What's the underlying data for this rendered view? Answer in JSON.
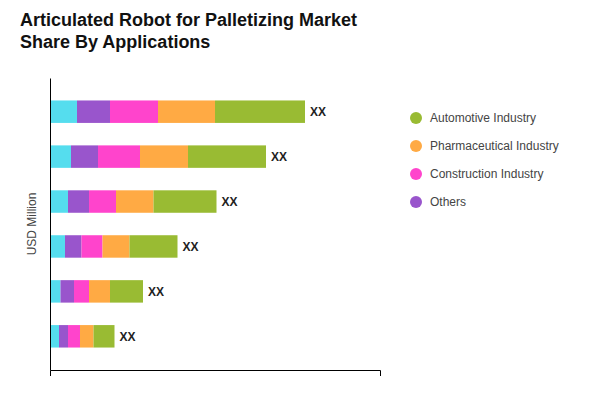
{
  "chart_data": {
    "type": "bar",
    "orientation": "horizontal",
    "stacked": true,
    "title": "Articulated Robot for Palletizing Market\nShare By Applications",
    "ylabel": "USD Million",
    "categories": [
      null,
      null,
      null,
      null,
      null,
      null
    ],
    "series": [
      {
        "color": "#55DDEE",
        "values": [
          1.8,
          1.4,
          1.2,
          1.0,
          0.7,
          0.6
        ]
      },
      {
        "name": "Others",
        "color": "#9955CC",
        "values": [
          2.2,
          1.8,
          1.4,
          1.1,
          0.9,
          0.6
        ]
      },
      {
        "name": "Construction Industry",
        "color": "#FF44CC",
        "values": [
          3.2,
          2.8,
          1.8,
          1.4,
          1.0,
          0.8
        ]
      },
      {
        "name": "Pharmaceutical Industry",
        "color": "#FFAA44",
        "values": [
          3.8,
          3.2,
          2.5,
          1.8,
          1.4,
          0.9
        ]
      },
      {
        "name": "Automotive Industry",
        "color": "#99BB33",
        "values": [
          6.0,
          5.2,
          4.2,
          3.2,
          2.2,
          1.4
        ]
      }
    ],
    "annotations": [
      "XX",
      "XX",
      "XX",
      "XX",
      "XX",
      "XX"
    ],
    "xlim": [
      0,
      22
    ],
    "xticks": [],
    "tick_labels": false,
    "grid": false
  }
}
